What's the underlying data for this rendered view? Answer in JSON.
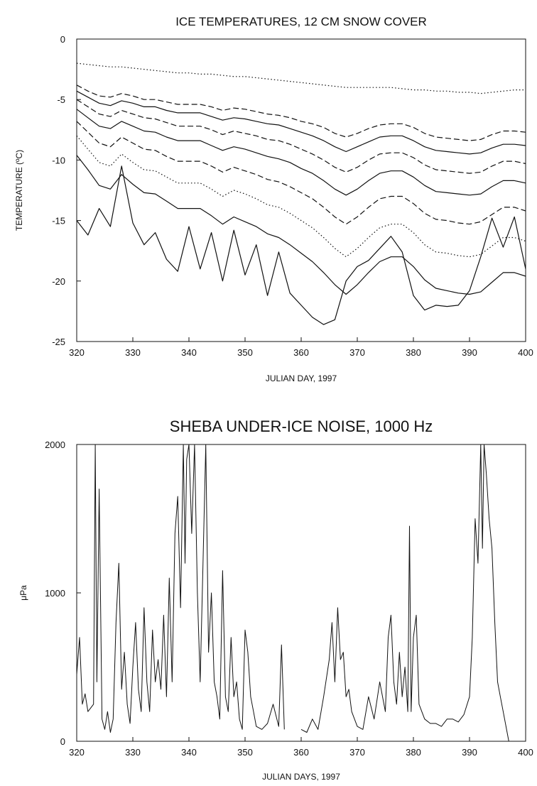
{
  "chart_data": [
    {
      "type": "line",
      "title": "ICE TEMPERATURES, 12 CM SNOW COVER",
      "xlabel": "JULIAN DAY, 1997",
      "ylabel": "TEMPERATURE (ºC)",
      "xlim": [
        320,
        400
      ],
      "ylim": [
        -25,
        0
      ],
      "xticks": [
        "320",
        "330",
        "340",
        "350",
        "360",
        "370",
        "380",
        "390",
        "400"
      ],
      "yticks": [
        "0",
        "-5",
        "-10",
        "-15",
        "-20",
        "-25"
      ],
      "grid": false,
      "legend": "none",
      "x": [
        320,
        322,
        324,
        326,
        328,
        330,
        332,
        334,
        336,
        338,
        340,
        342,
        344,
        346,
        348,
        350,
        352,
        354,
        356,
        358,
        360,
        362,
        364,
        366,
        368,
        370,
        372,
        374,
        376,
        378,
        380,
        382,
        384,
        386,
        388,
        390,
        392,
        394,
        396,
        398,
        400
      ],
      "series": [
        {
          "style": "dotted",
          "values": [
            -2.0,
            -2.1,
            -2.2,
            -2.3,
            -2.3,
            -2.4,
            -2.5,
            -2.6,
            -2.7,
            -2.8,
            -2.8,
            -2.9,
            -2.9,
            -3.0,
            -3.1,
            -3.1,
            -3.2,
            -3.3,
            -3.4,
            -3.5,
            -3.6,
            -3.7,
            -3.8,
            -3.9,
            -4.0,
            -4.0,
            -4.0,
            -4.0,
            -4.0,
            -4.1,
            -4.2,
            -4.2,
            -4.3,
            -4.3,
            -4.4,
            -4.4,
            -4.5,
            -4.4,
            -4.3,
            -4.2,
            -4.2
          ]
        },
        {
          "style": "dashed",
          "values": [
            -3.8,
            -4.3,
            -4.7,
            -4.8,
            -4.5,
            -4.7,
            -5.0,
            -5.0,
            -5.2,
            -5.4,
            -5.4,
            -5.4,
            -5.6,
            -5.9,
            -5.7,
            -5.8,
            -6.0,
            -6.2,
            -6.3,
            -6.5,
            -6.8,
            -7.0,
            -7.3,
            -7.8,
            -8.1,
            -7.8,
            -7.4,
            -7.1,
            -7.0,
            -7.0,
            -7.3,
            -7.8,
            -8.1,
            -8.2,
            -8.3,
            -8.4,
            -8.3,
            -7.9,
            -7.6,
            -7.6,
            -7.7
          ]
        },
        {
          "style": "solid",
          "values": [
            -4.3,
            -4.8,
            -5.3,
            -5.5,
            -5.1,
            -5.3,
            -5.6,
            -5.6,
            -5.9,
            -6.1,
            -6.1,
            -6.1,
            -6.4,
            -6.7,
            -6.5,
            -6.6,
            -6.8,
            -7.0,
            -7.1,
            -7.4,
            -7.7,
            -8.0,
            -8.4,
            -8.9,
            -9.3,
            -8.9,
            -8.5,
            -8.1,
            -8.0,
            -8.0,
            -8.4,
            -8.9,
            -9.2,
            -9.3,
            -9.4,
            -9.5,
            -9.4,
            -9.0,
            -8.7,
            -8.7,
            -8.8
          ]
        },
        {
          "style": "dashed",
          "values": [
            -5.0,
            -5.6,
            -6.2,
            -6.4,
            -5.9,
            -6.2,
            -6.5,
            -6.6,
            -6.9,
            -7.2,
            -7.2,
            -7.2,
            -7.5,
            -7.9,
            -7.6,
            -7.8,
            -8.0,
            -8.3,
            -8.4,
            -8.7,
            -9.1,
            -9.5,
            -10.0,
            -10.6,
            -11.0,
            -10.6,
            -10.0,
            -9.5,
            -9.4,
            -9.4,
            -9.8,
            -10.4,
            -10.8,
            -10.9,
            -11.0,
            -11.1,
            -11.0,
            -10.5,
            -10.1,
            -10.1,
            -10.3
          ]
        },
        {
          "style": "solid",
          "values": [
            -5.8,
            -6.5,
            -7.2,
            -7.4,
            -6.8,
            -7.2,
            -7.6,
            -7.7,
            -8.1,
            -8.4,
            -8.4,
            -8.4,
            -8.8,
            -9.2,
            -8.9,
            -9.1,
            -9.4,
            -9.7,
            -9.9,
            -10.2,
            -10.7,
            -11.1,
            -11.7,
            -12.4,
            -12.9,
            -12.4,
            -11.7,
            -11.1,
            -10.9,
            -10.9,
            -11.4,
            -12.1,
            -12.6,
            -12.7,
            -12.8,
            -12.9,
            -12.8,
            -12.2,
            -11.7,
            -11.7,
            -11.9
          ]
        },
        {
          "style": "dashed",
          "values": [
            -6.8,
            -7.7,
            -8.6,
            -8.9,
            -8.1,
            -8.6,
            -9.1,
            -9.2,
            -9.7,
            -10.1,
            -10.1,
            -10.1,
            -10.5,
            -11.0,
            -10.6,
            -10.9,
            -11.2,
            -11.6,
            -11.8,
            -12.2,
            -12.7,
            -13.2,
            -13.9,
            -14.7,
            -15.3,
            -14.7,
            -13.9,
            -13.2,
            -13.0,
            -13.0,
            -13.6,
            -14.4,
            -14.9,
            -15.0,
            -15.2,
            -15.3,
            -15.1,
            -14.5,
            -13.9,
            -13.9,
            -14.2
          ]
        },
        {
          "style": "dotted",
          "values": [
            -8.0,
            -9.1,
            -10.2,
            -10.5,
            -9.5,
            -10.2,
            -10.8,
            -10.9,
            -11.4,
            -11.9,
            -11.9,
            -11.9,
            -12.4,
            -13.0,
            -12.5,
            -12.8,
            -13.2,
            -13.7,
            -13.9,
            -14.4,
            -15.0,
            -15.6,
            -16.4,
            -17.3,
            -18.0,
            -17.3,
            -16.4,
            -15.6,
            -15.3,
            -15.3,
            -16.0,
            -17.0,
            -17.6,
            -17.7,
            -17.9,
            -18.0,
            -17.8,
            -17.1,
            -16.4,
            -16.4,
            -16.7
          ]
        },
        {
          "style": "solid",
          "values": [
            -9.6,
            -10.8,
            -12.1,
            -12.4,
            -11.2,
            -12.0,
            -12.7,
            -12.8,
            -13.4,
            -14.0,
            -14.0,
            -14.0,
            -14.6,
            -15.3,
            -14.7,
            -15.1,
            -15.5,
            -16.1,
            -16.4,
            -17.0,
            -17.7,
            -18.4,
            -19.3,
            -20.3,
            -21.1,
            -20.3,
            -19.3,
            -18.4,
            -18.0,
            -18.0,
            -18.8,
            -19.9,
            -20.6,
            -20.8,
            -21.0,
            -21.1,
            -20.9,
            -20.1,
            -19.3,
            -19.3,
            -19.6
          ]
        },
        {
          "style": "solid",
          "values": [
            -15.0,
            -16.2,
            -14.0,
            -15.5,
            -10.5,
            -15.2,
            -17.0,
            -16.0,
            -18.2,
            -19.2,
            -15.5,
            -19.0,
            -16.0,
            -20.0,
            -15.8,
            -19.5,
            -17.0,
            -21.2,
            -17.6,
            -21.0,
            -22.0,
            -23.0,
            -23.6,
            -23.2,
            -20.0,
            -18.8,
            -18.3,
            -17.3,
            -16.3,
            -17.6,
            -21.2,
            -22.4,
            -22.0,
            -22.1,
            -22.0,
            -20.8,
            -18.0,
            -14.8,
            -17.2,
            -14.7,
            -19.0
          ]
        }
      ]
    },
    {
      "type": "line",
      "title": "SHEBA UNDER-ICE NOISE, 1000 Hz",
      "xlabel": "JULIAN DAYS, 1997",
      "ylabel": "μPa",
      "xlim": [
        320,
        400
      ],
      "ylim": [
        0,
        2000
      ],
      "xticks": [
        "320",
        "330",
        "340",
        "350",
        "360",
        "370",
        "380",
        "390",
        "400"
      ],
      "yticks": [
        "0",
        "1000",
        "2000"
      ],
      "grid": false,
      "legend": "none",
      "series": [
        {
          "style": "solid",
          "x": [
            320,
            320.5,
            321,
            321.5,
            322,
            323,
            323.3,
            323.6,
            324,
            324.5,
            325,
            325.5,
            326,
            326.5,
            327,
            327.5,
            328,
            328.5,
            329,
            329.5,
            330,
            330.5,
            331,
            331.5,
            332,
            332.5,
            333,
            333.5,
            334,
            334.5,
            335,
            335.5,
            336,
            336.5,
            337,
            337.5,
            338,
            338.5,
            339,
            339.3,
            339.6,
            340,
            340.5,
            341,
            341.5,
            342,
            342.5,
            343,
            343.5,
            344,
            344.5,
            345,
            345.5,
            346,
            346.5,
            347,
            347.5,
            348,
            348.5,
            349,
            349.5,
            350,
            350.5,
            351,
            351.5,
            352,
            353,
            354,
            355,
            356,
            356.5,
            357
          ],
          "values": [
            450,
            700,
            250,
            320,
            200,
            250,
            2000,
            400,
            1700,
            150,
            80,
            200,
            60,
            150,
            800,
            1200,
            350,
            600,
            250,
            120,
            500,
            800,
            350,
            200,
            900,
            400,
            200,
            750,
            400,
            550,
            350,
            850,
            300,
            1100,
            400,
            1400,
            1650,
            900,
            2000,
            1200,
            1900,
            2000,
            1400,
            2000,
            1000,
            400,
            1200,
            2000,
            600,
            1000,
            400,
            300,
            150,
            1150,
            300,
            200,
            700,
            300,
            400,
            150,
            80,
            750,
            600,
            300,
            200,
            100,
            80,
            120,
            250,
            100,
            650,
            80
          ]
        },
        {
          "style": "solid",
          "x": [
            360,
            361,
            362,
            363,
            364,
            365,
            365.5,
            366,
            366.5,
            367,
            367.5,
            368,
            368.5,
            369,
            370,
            371,
            372,
            373,
            374,
            375,
            375.5,
            376,
            376.5,
            377,
            377.5,
            378,
            378.5,
            379,
            379.3,
            379.6,
            380,
            380.5,
            381,
            382,
            383,
            384,
            385,
            386,
            387,
            388,
            389,
            390,
            390.5,
            391,
            391.5,
            392,
            392.3,
            392.6,
            393,
            393.5,
            394,
            394.5,
            395,
            395.5,
            396,
            397,
            398,
            399,
            400
          ],
          "values": [
            80,
            60,
            150,
            80,
            300,
            550,
            800,
            400,
            900,
            550,
            600,
            300,
            350,
            200,
            100,
            80,
            300,
            150,
            400,
            200,
            700,
            850,
            400,
            250,
            600,
            300,
            500,
            200,
            1450,
            200,
            700,
            850,
            250,
            150,
            120,
            120,
            100,
            150,
            150,
            130,
            180,
            300,
            700,
            1500,
            1200,
            2000,
            1300,
            2000,
            1800,
            1500,
            1300,
            800,
            400,
            300,
            200,
            0,
            0,
            0,
            0
          ]
        }
      ]
    }
  ]
}
